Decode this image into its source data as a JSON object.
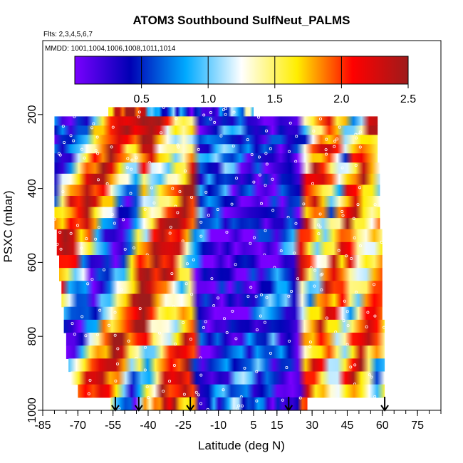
{
  "chart_data": {
    "type": "heatmap",
    "title": "ATOM3 Southbound SulfNeut_PALMS",
    "flights_note": "Flts: 2,3,4,5,6,7",
    "dates_note": "MMDD: 1001,1004,1006,1008,1011,1014",
    "xlabel": "Latitude (deg N)",
    "ylabel": "PSXC (mbar)",
    "xlim": [
      -85,
      85
    ],
    "ylim": [
      1000,
      0
    ],
    "x_tick_labels": [
      "-85",
      "-70",
      "-55",
      "-40",
      "-25",
      "-10",
      "5",
      "15",
      "30",
      "45",
      "60",
      "75"
    ],
    "x_tick_values": [
      -85,
      -70,
      -55,
      -40,
      -25,
      -10,
      5,
      15,
      30,
      45,
      60,
      75
    ],
    "y_tick_labels": [
      "200",
      "400",
      "600",
      "800",
      "1000"
    ],
    "y_tick_values": [
      200,
      400,
      600,
      800,
      1000
    ],
    "colorbar": {
      "range": [
        0,
        2.5
      ],
      "tick_labels": [
        "0.5",
        "1.0",
        "1.5",
        "2.0",
        "2.5"
      ],
      "tick_values": [
        0.5,
        1.0,
        1.5,
        2.0,
        2.5
      ],
      "colors": [
        "#7a00ff",
        "#0000b4",
        "#00aaff",
        "#ffffff",
        "#ffee00",
        "#ff0000",
        "#9e1b1b"
      ]
    },
    "arrow_latitudes": [
      -54,
      -44,
      -22,
      20,
      61
    ],
    "pressure_bands": [
      {
        "p_top": 180,
        "p_bot": 205,
        "lat_min": -57,
        "lat_max": 5,
        "seed": 1
      },
      {
        "p_top": 205,
        "p_bot": 230,
        "lat_min": -80,
        "lat_max": 58,
        "seed": 2
      },
      {
        "p_top": 230,
        "p_bot": 255,
        "lat_min": -80,
        "lat_max": 58,
        "seed": 3
      },
      {
        "p_top": 255,
        "p_bot": 280,
        "lat_min": -80,
        "lat_max": 58,
        "seed": 4
      },
      {
        "p_top": 280,
        "p_bot": 305,
        "lat_min": -80,
        "lat_max": 58,
        "seed": 5
      },
      {
        "p_top": 305,
        "p_bot": 330,
        "lat_min": -80,
        "lat_max": 58,
        "seed": 6
      },
      {
        "p_top": 330,
        "p_bot": 360,
        "lat_min": -80,
        "lat_max": 59,
        "seed": 7
      },
      {
        "p_top": 360,
        "p_bot": 390,
        "lat_min": -80,
        "lat_max": 59,
        "seed": 8
      },
      {
        "p_top": 390,
        "p_bot": 420,
        "lat_min": -80,
        "lat_max": 59,
        "seed": 9
      },
      {
        "p_top": 420,
        "p_bot": 450,
        "lat_min": -80,
        "lat_max": 59,
        "seed": 10
      },
      {
        "p_top": 450,
        "p_bot": 480,
        "lat_min": -80,
        "lat_max": 59,
        "seed": 11
      },
      {
        "p_top": 480,
        "p_bot": 510,
        "lat_min": -80,
        "lat_max": 59,
        "seed": 12
      },
      {
        "p_top": 510,
        "p_bot": 545,
        "lat_min": -79,
        "lat_max": 60,
        "seed": 13
      },
      {
        "p_top": 545,
        "p_bot": 580,
        "lat_min": -79,
        "lat_max": 60,
        "seed": 14
      },
      {
        "p_top": 580,
        "p_bot": 615,
        "lat_min": -78,
        "lat_max": 60,
        "seed": 15
      },
      {
        "p_top": 615,
        "p_bot": 650,
        "lat_min": -78,
        "lat_max": 60,
        "seed": 16
      },
      {
        "p_top": 650,
        "p_bot": 685,
        "lat_min": -77,
        "lat_max": 60,
        "seed": 17
      },
      {
        "p_top": 685,
        "p_bot": 720,
        "lat_min": -77,
        "lat_max": 60,
        "seed": 18
      },
      {
        "p_top": 720,
        "p_bot": 755,
        "lat_min": -76,
        "lat_max": 60,
        "seed": 19
      },
      {
        "p_top": 755,
        "p_bot": 790,
        "lat_min": -76,
        "lat_max": 61,
        "seed": 20
      },
      {
        "p_top": 790,
        "p_bot": 825,
        "lat_min": -75,
        "lat_max": 61,
        "seed": 21
      },
      {
        "p_top": 825,
        "p_bot": 860,
        "lat_min": -75,
        "lat_max": 61,
        "seed": 22
      },
      {
        "p_top": 860,
        "p_bot": 895,
        "lat_min": -74,
        "lat_max": 61,
        "seed": 23
      },
      {
        "p_top": 895,
        "p_bot": 930,
        "lat_min": -73,
        "lat_max": 61,
        "seed": 24
      },
      {
        "p_top": 930,
        "p_bot": 965,
        "lat_min": -70,
        "lat_max": 61,
        "seed": 25
      },
      {
        "p_top": 965,
        "p_bot": 1000,
        "lat_min": -56,
        "lat_max": 28,
        "seed": 26
      }
    ]
  }
}
